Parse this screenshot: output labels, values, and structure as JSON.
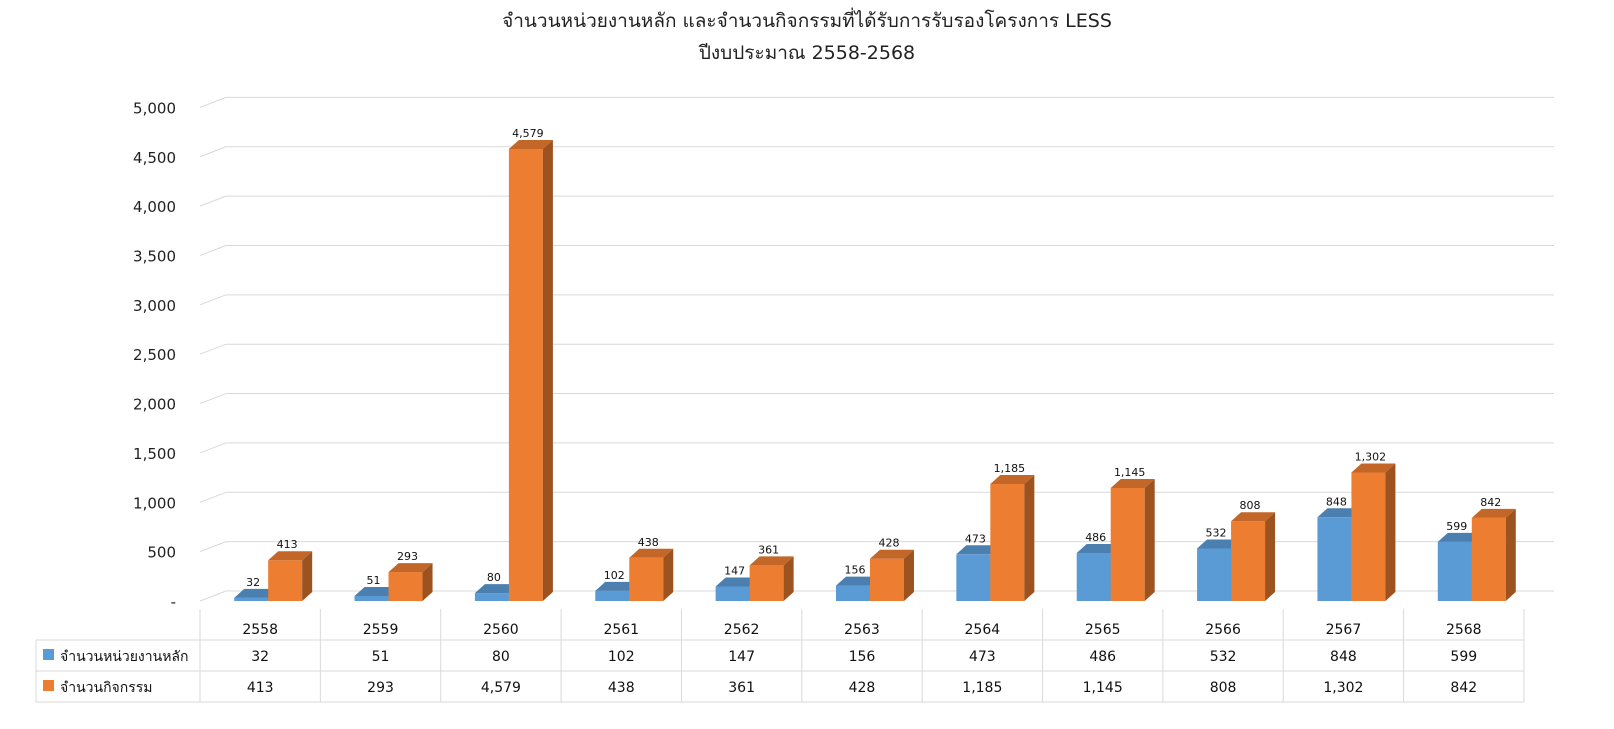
{
  "chart_data": {
    "type": "bar",
    "title": "จำนวนหน่วยงานหลัก และจำนวนกิจกรรมที่ได้รับการรับรองโครงการ LESS",
    "subtitle": "ปีงบประมาณ 2558-2568",
    "categories": [
      "2558",
      "2559",
      "2560",
      "2561",
      "2562",
      "2563",
      "2564",
      "2565",
      "2566",
      "2567",
      "2568"
    ],
    "series": [
      {
        "name": "จำนวนหน่วยงานหลัก",
        "color": "#5b9bd5",
        "values": [
          32,
          51,
          80,
          102,
          147,
          156,
          473,
          486,
          532,
          848,
          599
        ],
        "labels": [
          "32",
          "51",
          "80",
          "102",
          "147",
          "156",
          "473",
          "486",
          "532",
          "848",
          "599"
        ]
      },
      {
        "name": "จำนวนกิจกรรม",
        "color": "#ed7d31",
        "values": [
          413,
          293,
          4579,
          438,
          361,
          428,
          1185,
          1145,
          808,
          1302,
          842
        ],
        "labels": [
          "413",
          "293",
          "4,579",
          "438",
          "361",
          "428",
          "1,185",
          "1,145",
          "808",
          "1,302",
          "842"
        ]
      }
    ],
    "ylim": [
      0,
      5000
    ],
    "yticks": [
      0,
      500,
      1000,
      1500,
      2000,
      2500,
      3000,
      3500,
      4000,
      4500,
      5000
    ],
    "ytick_labels": [
      "-",
      "500",
      "1,000",
      "1,500",
      "2,000",
      "2,500",
      "3,000",
      "3,500",
      "4,000",
      "4,500",
      "5,000"
    ],
    "grid": true,
    "style": "3d-clustered-column",
    "legend": "data-table-below"
  }
}
